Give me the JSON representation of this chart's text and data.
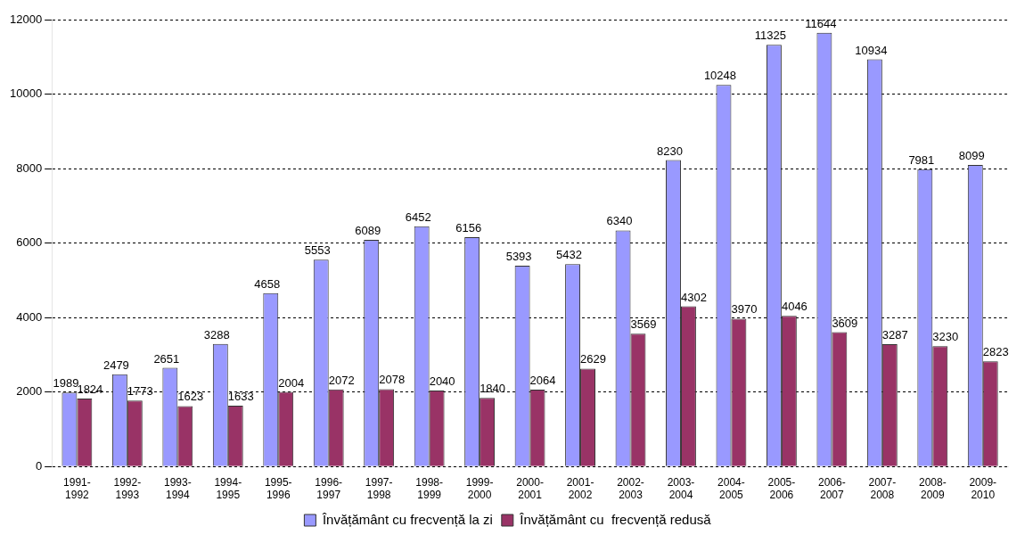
{
  "chart_data": {
    "type": "bar",
    "categories": [
      "1991-1992",
      "1992-1993",
      "1993-1994",
      "1994-1995",
      "1995-1996",
      "1996-1997",
      "1997-1998",
      "1998-1999",
      "1999-2000",
      "2000-2001",
      "2001-2002",
      "2002-2003",
      "2003-2004",
      "2004-2005",
      "2005-2006",
      "2006-2007",
      "2007-2008",
      "2008-2009",
      "2009-2010"
    ],
    "series": [
      {
        "name": "Învățământ cu frecvență la zi",
        "color": "#9999ff",
        "values": [
          1989,
          2479,
          2651,
          3288,
          4658,
          5553,
          6089,
          6452,
          6156,
          5393,
          5432,
          6340,
          8230,
          10248,
          11325,
          11644,
          10934,
          7981,
          8099
        ]
      },
      {
        "name": "Învățământ cu  frecvență redusă",
        "color": "#993366",
        "values": [
          1824,
          1773,
          1623,
          1633,
          2004,
          2072,
          2078,
          2040,
          1840,
          2064,
          2629,
          3569,
          4302,
          3970,
          4046,
          3609,
          3287,
          3230,
          2823
        ]
      }
    ],
    "ylim": [
      0,
      12000
    ],
    "yticks": [
      0,
      2000,
      4000,
      6000,
      8000,
      10000,
      12000
    ],
    "grid": "y",
    "legend": "bottom",
    "data_labels": true
  }
}
